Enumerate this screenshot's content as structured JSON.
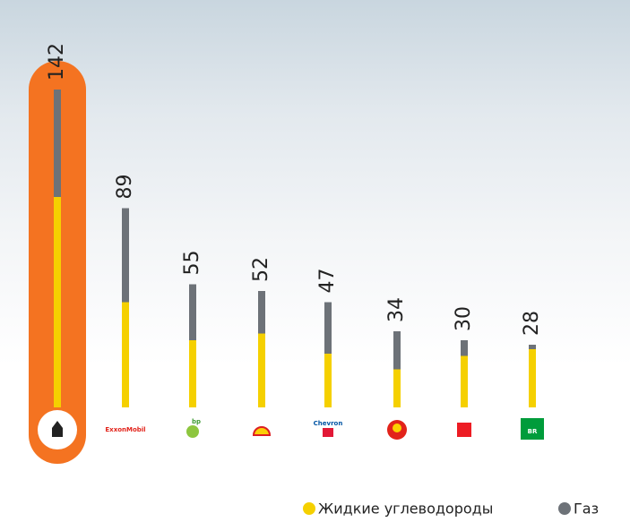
{
  "chart_data": {
    "type": "bar",
    "stacked": true,
    "categories": [
      null,
      "ExxonMobil",
      "bp",
      null,
      "Chevron",
      null,
      null,
      "BR"
    ],
    "totals": [
      142,
      89,
      55,
      52,
      47,
      34,
      30,
      28
    ],
    "series": [
      {
        "name": "Жидкие углеводороды",
        "color": "#f5d000",
        "values": [
          94,
          47,
          30,
          33,
          24,
          17,
          23,
          26
        ]
      },
      {
        "name": "Газ",
        "color": "#6d7278",
        "values": [
          48,
          42,
          25,
          19,
          23,
          17,
          7,
          2
        ]
      }
    ],
    "ylim": [
      0,
      142
    ]
  }
}
